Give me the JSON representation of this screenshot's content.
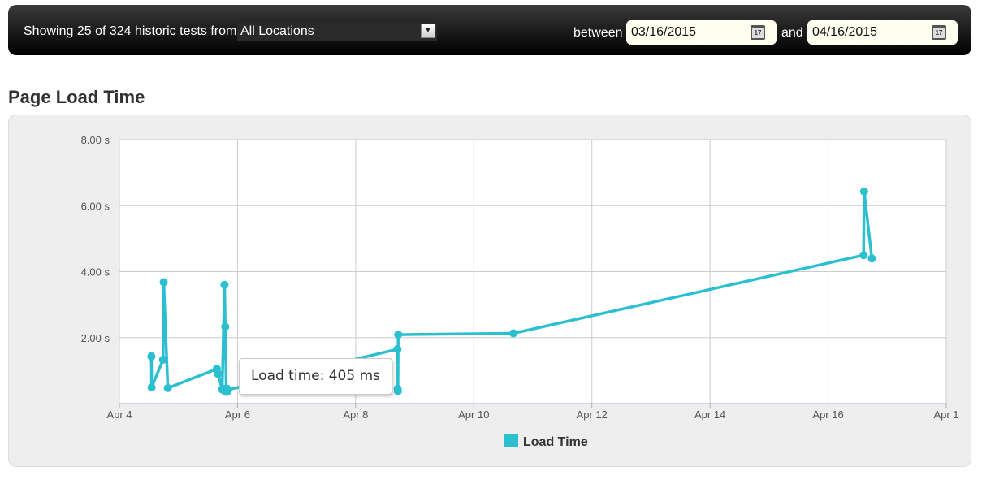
{
  "filter_bar": {
    "showing_text": "Showing 25 of 324 historic tests from",
    "location_value": "All Locations",
    "between_label": "between",
    "start_date": "03/16/2015",
    "and_label": "and",
    "end_date": "04/16/2015",
    "calendar_icon_text": "17"
  },
  "section_title": "Page Load Time",
  "tooltip": "Load time: 405 ms",
  "chart_data": {
    "type": "line",
    "title": "",
    "xlabel": "",
    "ylabel": "",
    "grid": true,
    "legend_placement": "bottom",
    "color": "#2bbfcf",
    "x_ticks": [
      "Apr 4",
      "Apr 6",
      "Apr 8",
      "Apr 10",
      "Apr 12",
      "Apr 14",
      "Apr 16",
      "Apr 1"
    ],
    "xlim": [
      "2015-04-04",
      "2015-04-18"
    ],
    "y_ticks": [
      "2.00 s",
      "4.00 s",
      "6.00 s",
      "8.00 s"
    ],
    "ylim": [
      0,
      8
    ],
    "series": [
      {
        "name": "Load Time",
        "points": [
          [
            "2015-04-04T13:00",
            1.43
          ],
          [
            "2015-04-04T13:05",
            0.49
          ],
          [
            "2015-04-04T17:45",
            1.33
          ],
          [
            "2015-04-04T18:00",
            3.68
          ],
          [
            "2015-04-04T19:40",
            0.47
          ],
          [
            "2015-04-05T15:36",
            1.05
          ],
          [
            "2015-04-05T16:05",
            0.9
          ],
          [
            "2015-04-05T17:46",
            0.43
          ],
          [
            "2015-04-05T18:43",
            3.6
          ],
          [
            "2015-04-05T19:00",
            2.33
          ],
          [
            "2015-04-05T19:26",
            0.405
          ],
          [
            "2015-04-08T17:00",
            1.65
          ],
          [
            "2015-04-08T17:05",
            0.45
          ],
          [
            "2015-04-08T17:10",
            0.38
          ],
          [
            "2015-04-08T17:17",
            2.09
          ],
          [
            "2015-04-10T16:05",
            2.13
          ],
          [
            "2015-04-16T14:24",
            4.5
          ],
          [
            "2015-04-16T14:38",
            6.43
          ],
          [
            "2015-04-16T17:46",
            4.4
          ]
        ]
      }
    ]
  }
}
